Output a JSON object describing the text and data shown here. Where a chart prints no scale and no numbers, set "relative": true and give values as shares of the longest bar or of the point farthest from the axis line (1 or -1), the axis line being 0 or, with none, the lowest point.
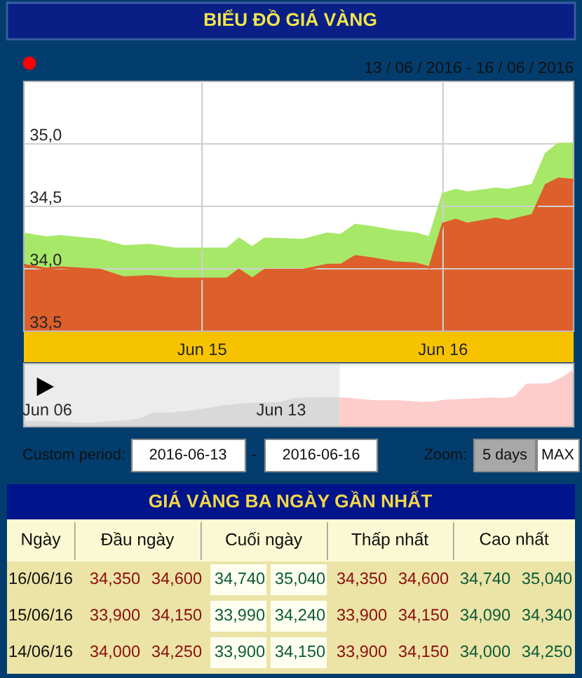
{
  "chart_data": [
    {
      "type": "area",
      "title": "BIỂU ĐỒ GIÁ VÀNG",
      "subtitle": "13 / 06 / 2016 - 16 / 06 / 2016",
      "x": [
        "2016-06-14T06:15",
        "2016-06-14T08:30",
        "2016-06-14T09:50",
        "2016-06-14T13:50",
        "2016-06-14T16:10",
        "2016-06-14T18:45",
        "2016-06-14T21:20",
        "2016-06-15T02:30",
        "2016-06-15T03:40",
        "2016-06-15T05:00",
        "2016-06-15T06:15",
        "2016-06-15T10:05",
        "2016-06-15T12:25",
        "2016-06-15T13:50",
        "2016-06-15T15:15",
        "2016-06-15T17:05",
        "2016-06-15T19:10",
        "2016-06-15T21:20",
        "2016-06-15T22:40",
        "2016-06-16T00:00",
        "2016-06-16T01:15",
        "2016-06-16T02:25",
        "2016-06-16T05:15",
        "2016-06-16T06:25",
        "2016-06-16T08:55",
        "2016-06-16T10:15",
        "2016-06-16T11:30",
        "2016-06-16T13:00"
      ],
      "series": [
        {
          "color": "#a8e868",
          "values": [
            34.28,
            34.25,
            34.26,
            34.23,
            34.18,
            34.19,
            34.16,
            34.16,
            34.24,
            34.17,
            34.24,
            34.23,
            34.28,
            34.27,
            34.35,
            34.33,
            34.3,
            34.28,
            34.25,
            34.6,
            34.63,
            34.61,
            34.64,
            34.63,
            34.67,
            34.92,
            35.0,
            35.0
          ]
        },
        {
          "color": "#dd5f2c",
          "values": [
            34.03,
            34.0,
            34.01,
            33.99,
            33.93,
            33.94,
            33.92,
            33.92,
            33.99,
            33.92,
            33.99,
            33.99,
            34.03,
            34.03,
            34.1,
            34.08,
            34.05,
            34.04,
            34.01,
            34.36,
            34.39,
            34.36,
            34.4,
            34.38,
            34.43,
            34.67,
            34.72,
            34.71
          ]
        }
      ],
      "xlim": [
        "2016-06-14T06:15",
        "2016-06-16T13:00"
      ],
      "xticks": [
        {
          "value": "2016-06-15",
          "label": "Jun 15"
        },
        {
          "value": "2016-06-16",
          "label": "Jun 16"
        }
      ],
      "ylim": [
        33.5,
        35.5
      ],
      "yticks": [
        {
          "value": 33.5,
          "label": "33,5"
        },
        {
          "value": 34.0,
          "label": "34,0"
        },
        {
          "value": 34.5,
          "label": "34,5"
        },
        {
          "value": 35.0,
          "label": "35,0"
        }
      ],
      "grid": true
    },
    {
      "type": "area",
      "relative": true,
      "tick_labels": "x",
      "series": [
        {
          "color": "#d9d9d9",
          "values": [
            0.08,
            0.08,
            0.08,
            0.07,
            0.06,
            0.05,
            0.05,
            0.07,
            0.08,
            0.1,
            0.13,
            0.23,
            0.23,
            0.24,
            0.26,
            0.29,
            0.32,
            0.36,
            0.38,
            0.4,
            0.41,
            0.41,
            0.42,
            0.49,
            0.5,
            0.5,
            0.51,
            0.5,
            null,
            null,
            null,
            null,
            null,
            null,
            null,
            null,
            null,
            null,
            null,
            null,
            null,
            null,
            null,
            null,
            null,
            null,
            null,
            null
          ]
        },
        {
          "color": "#ffcccc",
          "values": [
            null,
            null,
            null,
            null,
            null,
            null,
            null,
            null,
            null,
            null,
            null,
            null,
            null,
            null,
            null,
            null,
            null,
            null,
            null,
            null,
            null,
            null,
            null,
            null,
            null,
            null,
            null,
            0.5,
            0.49,
            0.47,
            0.45,
            0.45,
            0.45,
            0.44,
            0.42,
            0.43,
            0.46,
            0.47,
            0.48,
            0.49,
            0.5,
            0.49,
            0.52,
            0.75,
            0.75,
            0.76,
            0.86,
            1
          ]
        }
      ],
      "categories": [
        null,
        null,
        "Jun 06",
        null,
        null,
        null,
        null,
        null,
        null,
        null,
        null,
        null,
        null,
        null,
        null,
        null,
        null,
        null,
        null,
        null,
        null,
        null,
        "Jun 13",
        null,
        null,
        null,
        null,
        null,
        null,
        null,
        null,
        null,
        null,
        null,
        null,
        null,
        null,
        null,
        null,
        null,
        null,
        null,
        null,
        null,
        null,
        null,
        null,
        null
      ]
    },
    {
      "type": "other",
      "annotations": [
        "Custom period:",
        "2016-06-13",
        "-",
        "2016-06-16",
        "Zoom:",
        "5 days",
        "MAX"
      ]
    },
    {
      "type": "other",
      "title": "GIÁ VÀNG BA NGÀY GẦN NHẤT",
      "annotations": [
        "Ngày",
        "Đầu ngày",
        "Cuối ngày",
        "Thấp nhất",
        "Cao nhất",
        "16/06/16",
        "34,350",
        "34,600",
        "34,740",
        "35,040",
        "34,350",
        "34,600",
        "34,740",
        "35,040",
        "15/06/16",
        "33,900",
        "34,150",
        "33,990",
        "34,240",
        "33,900",
        "34,150",
        "34,090",
        "34,340",
        "14/06/16",
        "34,000",
        "34,250",
        "33,900",
        "34,150",
        "33,900",
        "34,150",
        "34,000",
        "34,250"
      ]
    }
  ]
}
